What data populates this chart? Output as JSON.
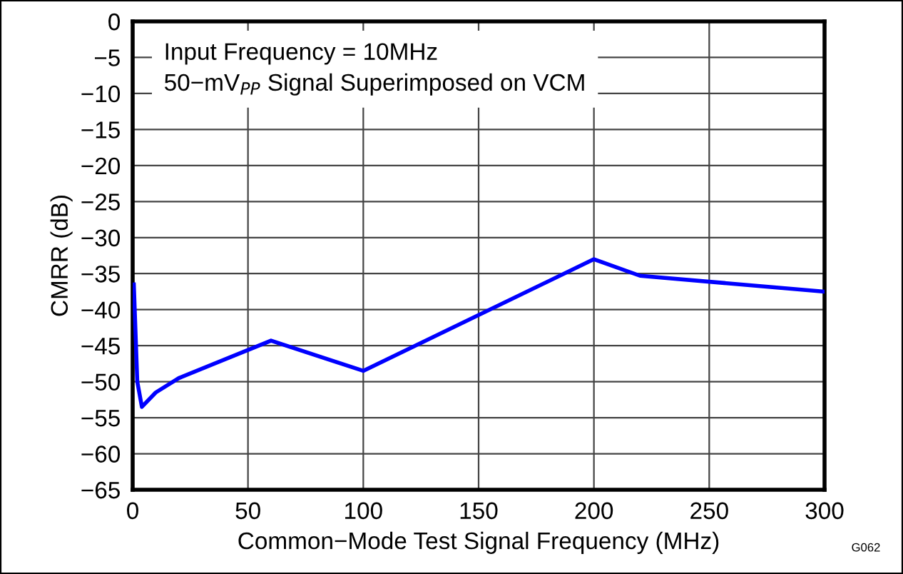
{
  "chart_data": {
    "type": "line",
    "xlabel": "Common−Mode Test Signal Frequency (MHz)",
    "ylabel": "CMRR (dB)",
    "annotations": [
      "Input Frequency = 10MHz",
      "50−mV$_{PP}$ Signal Superimposed on VCM",
      "G062"
    ],
    "x": [
      0.5,
      2,
      4,
      10,
      20,
      60,
      100,
      200,
      220,
      300
    ],
    "series": [
      {
        "color": "#0000ff",
        "values": [
          -36.5,
          -50,
          -53.5,
          -51.5,
          -49.5,
          -44.3,
          -48.5,
          -33,
          -35.3,
          -37.5
        ]
      }
    ],
    "xlim": [
      0,
      300
    ],
    "xticks": [
      0,
      50,
      100,
      150,
      200,
      250,
      300
    ],
    "ylim": [
      -65,
      0
    ],
    "yticks": [
      0,
      {
        "value": -5,
        "label": "−5"
      },
      {
        "value": -10,
        "label": "−10"
      },
      {
        "value": -15,
        "label": "−15"
      },
      {
        "value": -20,
        "label": "−20"
      },
      {
        "value": -25,
        "label": "−25"
      },
      {
        "value": -30,
        "label": "−30"
      },
      {
        "value": -35,
        "label": "−35"
      },
      {
        "value": -40,
        "label": "−40"
      },
      {
        "value": -45,
        "label": "−45"
      },
      {
        "value": -50,
        "label": "−50"
      },
      {
        "value": -55,
        "label": "−55"
      },
      {
        "value": -60,
        "label": "−60"
      },
      {
        "value": -65,
        "label": "−65"
      }
    ],
    "grid": true,
    "legend": false,
    "marker": "none",
    "line_style": "solid"
  }
}
